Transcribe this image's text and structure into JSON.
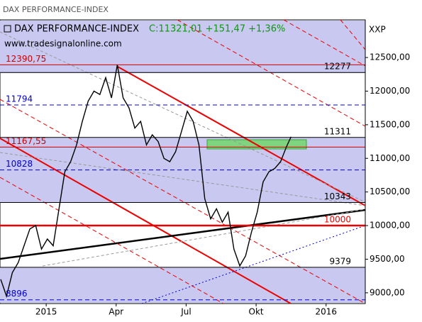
{
  "chart_data": {
    "type": "line",
    "title": "DAX PERFORMANCE-INDEX",
    "legend_name": "DAX PERFORMANCE-INDEX",
    "legend_quote": "C:11321,01 +151,47 +1,36%",
    "symbol": "XXP",
    "watermark": "www.tradesignalonline.com",
    "xlim": [
      -1.98,
      13.68
    ],
    "xticks": [
      {
        "value": 0,
        "label": "2015"
      },
      {
        "value": 3,
        "label": "Apr"
      },
      {
        "value": 6,
        "label": "Jul"
      },
      {
        "value": 9,
        "label": "Okt"
      },
      {
        "value": 12,
        "label": "2016"
      }
    ],
    "ylim": [
      8840,
      13060
    ],
    "yticks": [
      {
        "value": 9000,
        "label": "9000,00"
      },
      {
        "value": 9500,
        "label": "9500,00"
      },
      {
        "value": 10000,
        "label": "10000,00"
      },
      {
        "value": 10500,
        "label": "10500,00"
      },
      {
        "value": 11000,
        "label": "11000,00"
      },
      {
        "value": 11500,
        "label": "11500,00"
      },
      {
        "value": 12000,
        "label": "12000,00"
      },
      {
        "value": 12500,
        "label": "12500,00"
      }
    ],
    "series": [
      {
        "name": "DAX PERFORMANCE-INDEX",
        "color": "#000000",
        "x": [
          -1.95,
          -1.7,
          -1.45,
          -1.2,
          -0.95,
          -0.7,
          -0.45,
          -0.2,
          0.05,
          0.3,
          0.55,
          0.8,
          1.05,
          1.3,
          1.55,
          1.8,
          2.05,
          2.3,
          2.55,
          2.8,
          3.05,
          3.3,
          3.55,
          3.8,
          4.05,
          4.3,
          4.55,
          4.8,
          5.05,
          5.3,
          5.55,
          5.8,
          6.05,
          6.3,
          6.55,
          6.8,
          7.05,
          7.3,
          7.55,
          7.8,
          8.05,
          8.3,
          8.55,
          8.8,
          9.05,
          9.3,
          9.55,
          9.8,
          10.05,
          10.3,
          10.5
        ],
        "values": [
          9200,
          8950,
          9300,
          9450,
          9700,
          9950,
          10000,
          9650,
          9800,
          9700,
          10250,
          10800,
          10950,
          11200,
          11550,
          11850,
          12000,
          11950,
          12200,
          11900,
          12390,
          11900,
          11750,
          11450,
          11550,
          11200,
          11350,
          11250,
          11000,
          10950,
          11100,
          11400,
          11700,
          11550,
          11200,
          10400,
          10100,
          10250,
          10050,
          10200,
          9650,
          9400,
          9550,
          9900,
          10200,
          10650,
          10800,
          10850,
          10950,
          11170,
          11321
        ]
      }
    ],
    "levels_left": [
      {
        "value": 12390.75,
        "label": "12390,75",
        "color": "#cc0000",
        "style": "solid"
      },
      {
        "value": 11794,
        "label": "11794",
        "color": "#0000cc",
        "style": "dashed"
      },
      {
        "value": 11167.55,
        "label": "11167,55",
        "color": "#cc0000",
        "style": "solid"
      },
      {
        "value": 10828,
        "label": "10828",
        "color": "#0000cc",
        "style": "dashed"
      },
      {
        "value": 8896,
        "label": "8896",
        "color": "#0000cc",
        "style": "dashed"
      }
    ],
    "levels_right": [
      {
        "value": 12277,
        "label": "12277",
        "color": "#000000",
        "style": "solid"
      },
      {
        "value": 11311,
        "label": "11311",
        "color": "#000000",
        "style": "solid"
      },
      {
        "value": 10343,
        "label": "10343",
        "color": "#000000",
        "style": "solid"
      },
      {
        "value": 10000,
        "label": "10000",
        "color": "#ee0000",
        "style": "thick"
      },
      {
        "value": 9379,
        "label": "9379",
        "color": "#000000",
        "style": "solid"
      }
    ]
  }
}
